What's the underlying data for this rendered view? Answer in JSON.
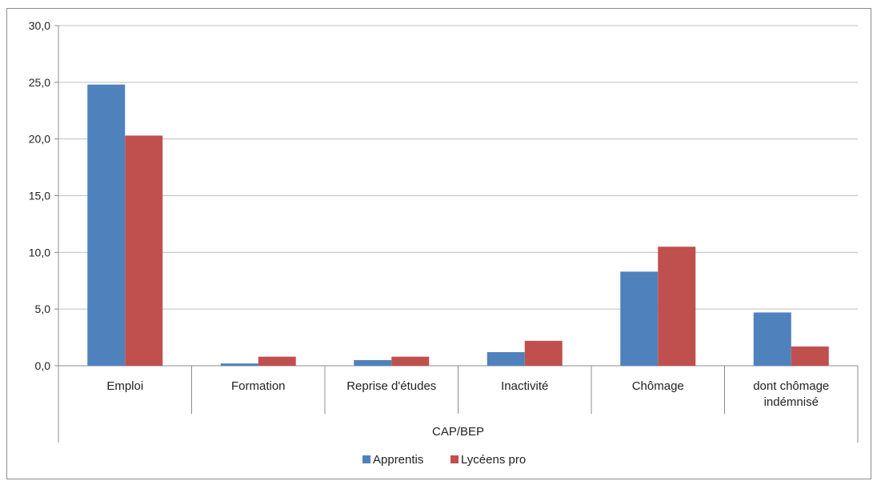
{
  "chart_data": {
    "type": "bar",
    "title": "",
    "xlabel": "",
    "ylabel": "",
    "group_label": "CAP/BEP",
    "categories": [
      [
        "Emploi"
      ],
      [
        "Formation"
      ],
      [
        "Reprise d'études"
      ],
      [
        "Inactivité"
      ],
      [
        "Chômage"
      ],
      [
        "dont chômage",
        "indémnisé"
      ]
    ],
    "series": [
      {
        "name": "Apprentis",
        "color": "#4f81bd",
        "values": [
          24.8,
          0.2,
          0.5,
          1.2,
          8.3,
          4.7
        ]
      },
      {
        "name": "Lycéens pro",
        "color": "#c0504d",
        "values": [
          20.3,
          0.8,
          0.8,
          2.2,
          10.5,
          1.7
        ]
      }
    ],
    "ylim": [
      0,
      30
    ],
    "yticks": [
      "0,0",
      "5,0",
      "10,0",
      "15,0",
      "20,0",
      "25,0",
      "30,0"
    ],
    "ytick_step": 5,
    "grid": true,
    "legend_position": "bottom"
  }
}
